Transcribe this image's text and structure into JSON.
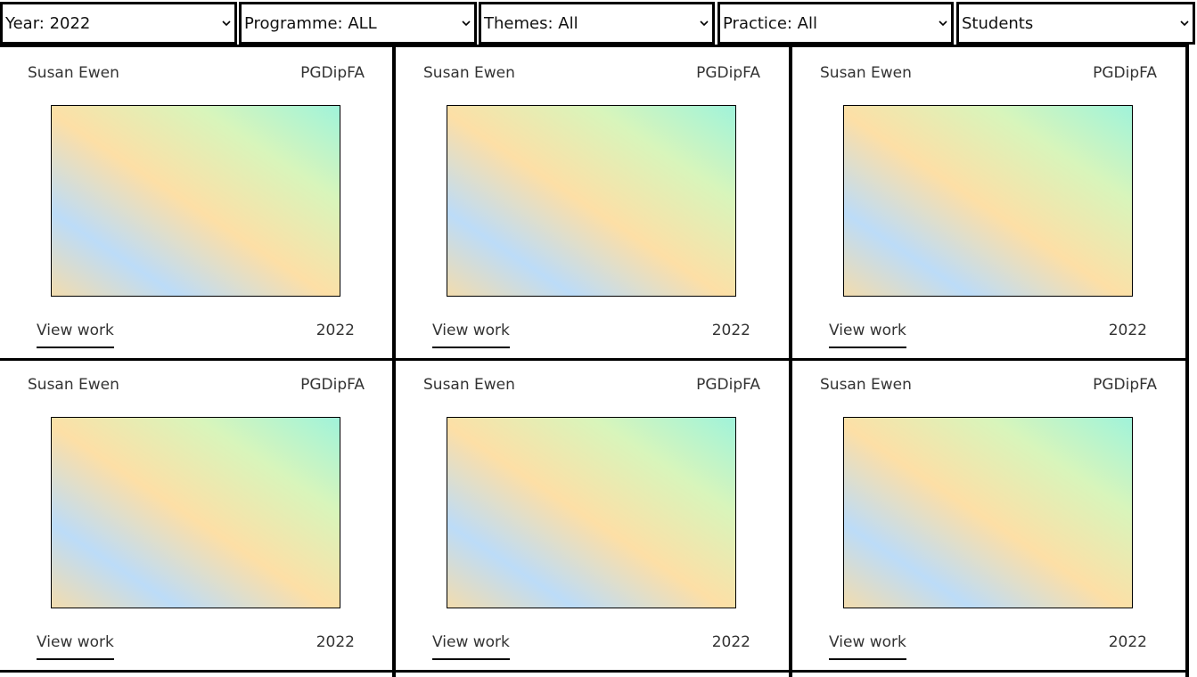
{
  "filters": [
    "Year: 2022",
    "Programme: ALL",
    "Themes: All",
    "Practice: All",
    "Students"
  ],
  "cards": [
    {
      "name": "Susan Ewen",
      "programme": "PGDipFA",
      "link": "View work",
      "year": "2022"
    },
    {
      "name": "Susan Ewen",
      "programme": "PGDipFA",
      "link": "View work",
      "year": "2022"
    },
    {
      "name": "Susan Ewen",
      "programme": "PGDipFA",
      "link": "View work",
      "year": "2022"
    },
    {
      "name": "Susan Ewen",
      "programme": "PGDipFA",
      "link": "View work",
      "year": "2022"
    },
    {
      "name": "Susan Ewen",
      "programme": "PGDipFA",
      "link": "View work",
      "year": "2022"
    },
    {
      "name": "Susan Ewen",
      "programme": "PGDipFA",
      "link": "View work",
      "year": "2022"
    }
  ]
}
